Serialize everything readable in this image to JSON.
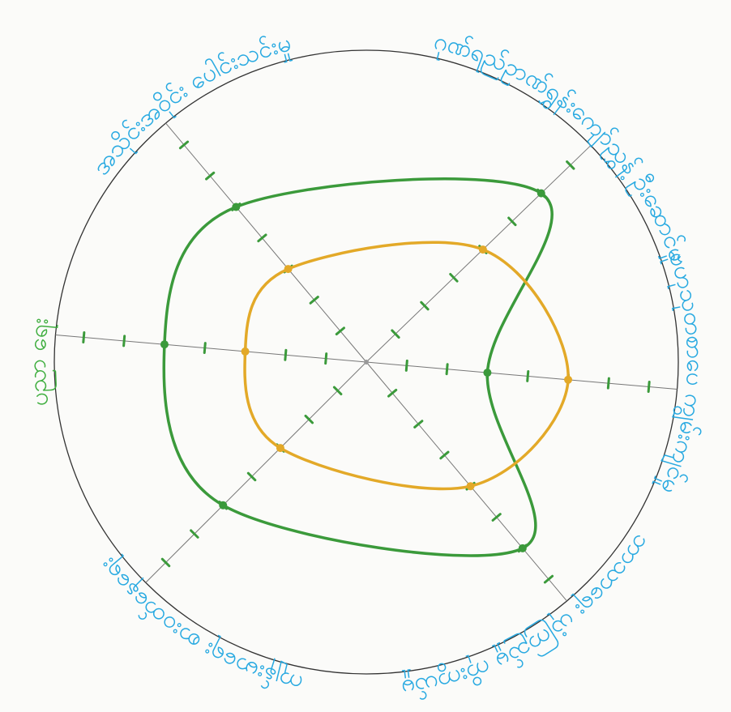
{
  "chart_data": {
    "type": "radar",
    "categories": [
      "ဂုဏ်ရည်ဥာဏ်ရွှန်းကျော်ညွှန့် ဦးဆောင်မှု",
      "ဗဟုသုတစာပေ ကျွမ်းကျင်မှု",
      "ဘာသာရေး ယုံကြည်မှု ကိုးကွယ်မှု",
      "ကျန်းမာရေး စားဝတ်နေရေး",
      "ပညာ ရေး",
      "အသိုင်းအဝိုင်း ပေါင်းသင်းမှု"
    ],
    "category_colors": [
      "#27a9e1",
      "#27a9e1",
      "#27a9e1",
      "#27a9e1",
      "#3fae3f",
      "#27a9e1"
    ],
    "series": [
      {
        "color": "#3b9a3b",
        "values": [
          6,
          3,
          6,
          5,
          5,
          5
        ]
      },
      {
        "color": "#e3a928",
        "values": [
          4,
          5,
          4,
          3,
          3,
          3
        ]
      }
    ],
    "rlim": [
      0,
      7.7
    ],
    "rticks": [
      1,
      2,
      3,
      4,
      5,
      6,
      7
    ],
    "tick_color": "#3b9a3b"
  }
}
